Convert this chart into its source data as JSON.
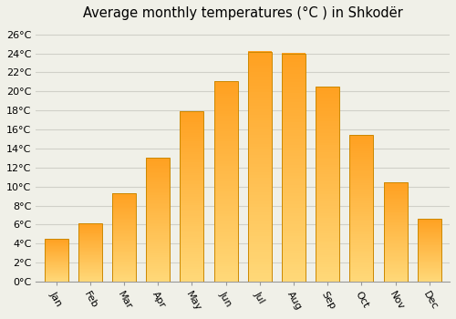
{
  "title": "Average monthly temperatures (°C ) in Shkodër",
  "months": [
    "Jan",
    "Feb",
    "Mar",
    "Apr",
    "May",
    "Jun",
    "Jul",
    "Aug",
    "Sep",
    "Oct",
    "Nov",
    "Dec"
  ],
  "values": [
    4.5,
    6.1,
    9.3,
    13.0,
    17.9,
    21.1,
    24.2,
    24.0,
    20.5,
    15.4,
    10.4,
    6.6
  ],
  "bar_color_light": "#FFD878",
  "bar_color_dark": "#FFA020",
  "bar_edge_color": "#CC8800",
  "bar_edge_width": 0.7,
  "ylim": [
    0,
    27
  ],
  "yticks": [
    0,
    2,
    4,
    6,
    8,
    10,
    12,
    14,
    16,
    18,
    20,
    22,
    24,
    26
  ],
  "ytick_labels": [
    "0°C",
    "2°C",
    "4°C",
    "6°C",
    "8°C",
    "10°C",
    "12°C",
    "14°C",
    "16°C",
    "18°C",
    "20°C",
    "22°C",
    "24°C",
    "26°C"
  ],
  "background_color": "#f0f0e8",
  "grid_color": "#d0d0c8",
  "title_fontsize": 10.5,
  "tick_fontsize": 8,
  "bar_width": 0.7,
  "xlabel_rotation": -60
}
